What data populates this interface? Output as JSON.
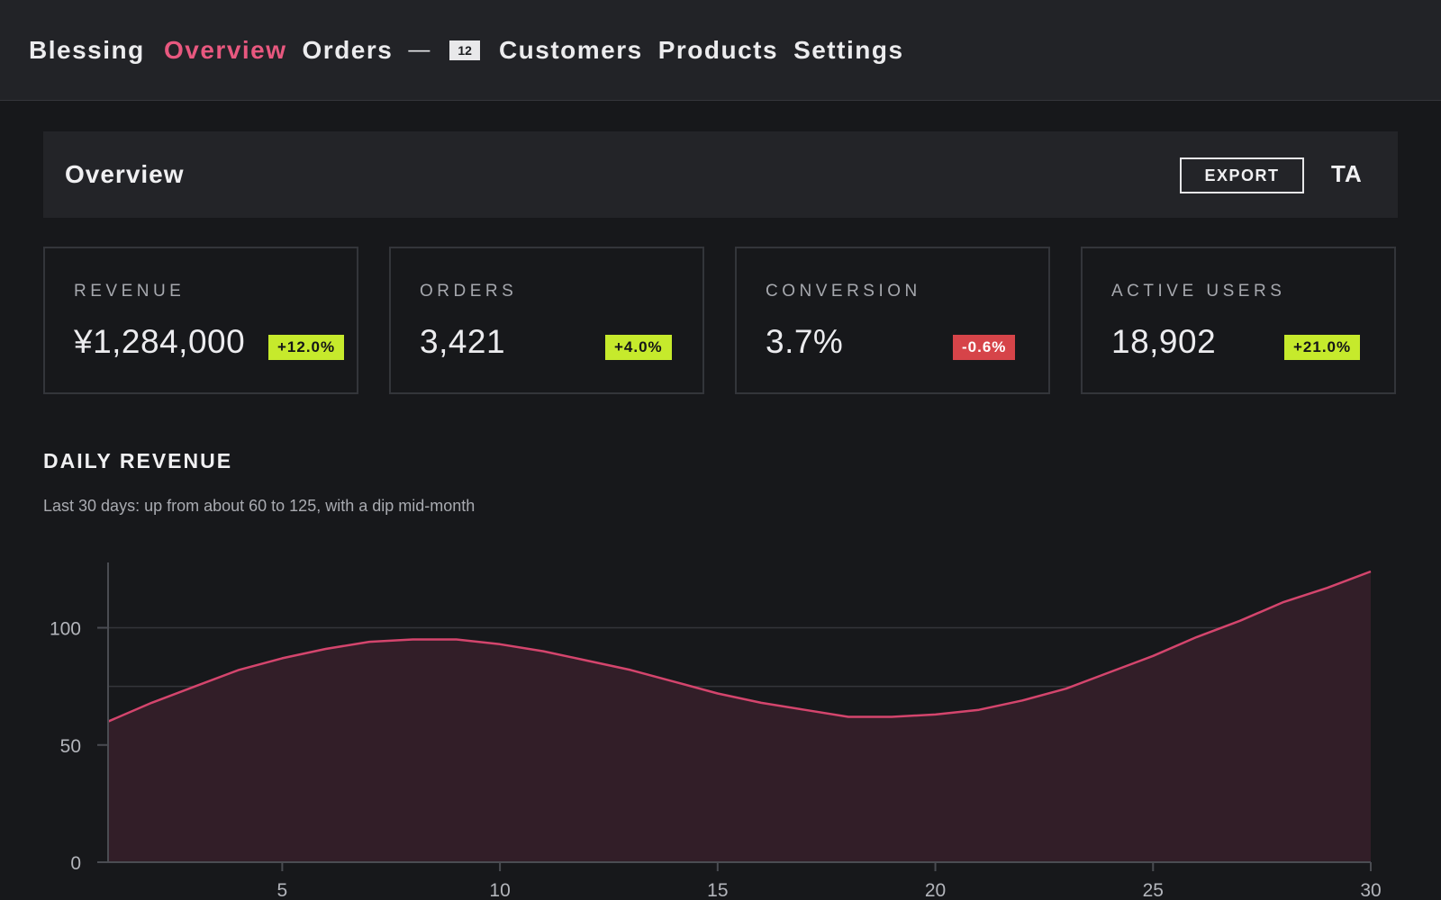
{
  "app": {
    "brand": "Blessing"
  },
  "nav": {
    "items": [
      {
        "label": "Overview",
        "active": true
      },
      {
        "label": "Orders",
        "active": false
      },
      {
        "label": "Customers",
        "active": false
      },
      {
        "label": "Products",
        "active": false
      },
      {
        "label": "Settings",
        "active": false
      }
    ],
    "orders_separator": "—",
    "orders_count": "12"
  },
  "header": {
    "title": "Overview",
    "export_label": "EXPORT",
    "avatar_initials": "TA"
  },
  "kpis": [
    {
      "label": "REVENUE",
      "value": "¥1,284,000",
      "delta": "+12.0%",
      "trend": "up"
    },
    {
      "label": "ORDERS",
      "value": "3,421",
      "delta": "+4.0%",
      "trend": "up"
    },
    {
      "label": "CONVERSION",
      "value": "3.7%",
      "delta": "-0.6%",
      "trend": "down"
    },
    {
      "label": "ACTIVE USERS",
      "value": "18,902",
      "delta": "+21.0%",
      "trend": "up"
    }
  ],
  "colors": {
    "accent": "#e8587f",
    "line": "#d4456d",
    "area": "#321e28",
    "positive": "#c6ea2c",
    "negative": "#d64449"
  },
  "chart_section": {
    "title": "DAILY REVENUE",
    "subtitle": "Last 30 days: up from about 60 to 125, with a dip mid-month"
  },
  "chart_data": {
    "type": "area",
    "title": "DAILY REVENUE",
    "xlabel": "",
    "ylabel": "",
    "x": [
      1,
      2,
      3,
      4,
      5,
      6,
      7,
      8,
      9,
      10,
      11,
      12,
      13,
      14,
      15,
      16,
      17,
      18,
      19,
      20,
      21,
      22,
      23,
      24,
      25,
      26,
      27,
      28,
      29,
      30
    ],
    "values": [
      60,
      68,
      75,
      82,
      87,
      91,
      94,
      95,
      95,
      93,
      90,
      86,
      82,
      77,
      72,
      68,
      65,
      62,
      62,
      63,
      65,
      69,
      74,
      81,
      88,
      96,
      103,
      111,
      117,
      124
    ],
    "xlim": [
      1,
      30
    ],
    "ylim": [
      0,
      124
    ],
    "x_ticks": [
      5,
      10,
      15,
      20,
      25,
      30
    ],
    "y_ticks": [
      0,
      50,
      100
    ],
    "grid": true
  }
}
